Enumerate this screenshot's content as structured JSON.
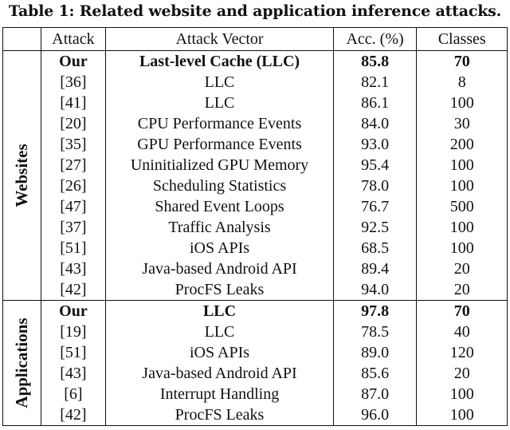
{
  "caption": "Table 1: Related website and application inference attacks.",
  "headers": [
    "",
    "Attack",
    "Attack Vector",
    "Acc. (%)",
    "Classes"
  ],
  "groups": [
    {
      "label": "Websites",
      "rows": [
        {
          "attack": "Our",
          "vector": "Last-level Cache (LLC)",
          "acc": "85.8",
          "classes": "70",
          "bold": true
        },
        {
          "attack": "[36]",
          "vector": "LLC",
          "acc": "82.1",
          "classes": "8"
        },
        {
          "attack": "[41]",
          "vector": "LLC",
          "acc": "86.1",
          "classes": "100"
        },
        {
          "attack": "[20]",
          "vector": "CPU Performance Events",
          "acc": "84.0",
          "classes": "30"
        },
        {
          "attack": "[35]",
          "vector": "GPU Performance Events",
          "acc": "93.0",
          "classes": "200"
        },
        {
          "attack": "[27]",
          "vector": "Uninitialized GPU Memory",
          "acc": "95.4",
          "classes": "100"
        },
        {
          "attack": "[26]",
          "vector": "Scheduling Statistics",
          "acc": "78.0",
          "classes": "100"
        },
        {
          "attack": "[47]",
          "vector": "Shared Event Loops",
          "acc": "76.7",
          "classes": "500"
        },
        {
          "attack": "[37]",
          "vector": "Traffic Analysis",
          "acc": "92.5",
          "classes": "100"
        },
        {
          "attack": "[51]",
          "vector": "iOS APIs",
          "acc": "68.5",
          "classes": "100"
        },
        {
          "attack": "[43]",
          "vector": "Java-based Android API",
          "acc": "89.4",
          "classes": "20"
        },
        {
          "attack": "[42]",
          "vector": "ProcFS Leaks",
          "acc": "94.0",
          "classes": "20"
        }
      ]
    },
    {
      "label": "Applications",
      "rows": [
        {
          "attack": "Our",
          "vector": "LLC",
          "acc": "97.8",
          "classes": "70",
          "bold": true
        },
        {
          "attack": "[19]",
          "vector": "LLC",
          "acc": "78.5",
          "classes": "40"
        },
        {
          "attack": "[51]",
          "vector": "iOS APIs",
          "acc": "89.0",
          "classes": "120"
        },
        {
          "attack": "[43]",
          "vector": "Java-based Android API",
          "acc": "85.6",
          "classes": "20"
        },
        {
          "attack": "[6]",
          "vector": "Interrupt Handling",
          "acc": "87.0",
          "classes": "100"
        },
        {
          "attack": "[42]",
          "vector": "ProcFS Leaks",
          "acc": "96.0",
          "classes": "100"
        }
      ]
    }
  ]
}
